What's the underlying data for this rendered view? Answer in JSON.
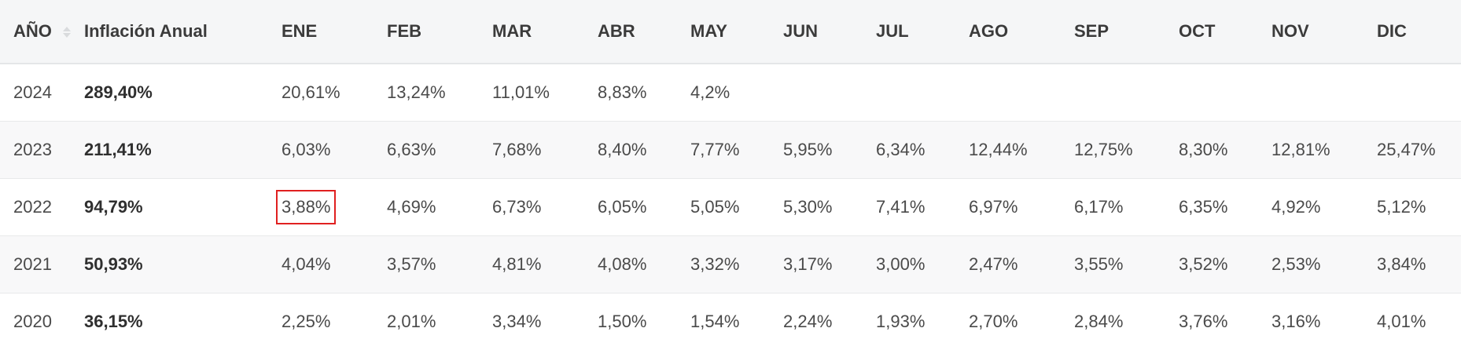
{
  "table": {
    "headers": [
      "AÑO",
      "Inflación Anual",
      "ENE",
      "FEB",
      "MAR",
      "ABR",
      "MAY",
      "JUN",
      "JUL",
      "AGO",
      "SEP",
      "OCT",
      "NOV",
      "DIC"
    ],
    "sort_icon": "sort-icon",
    "highlight_color": "#e02020",
    "highlighted_cell": {
      "year": "2022",
      "month": "ENE"
    },
    "rows": [
      {
        "year": "2024",
        "annual": "289,40%",
        "months": [
          "20,61%",
          "13,24%",
          "11,01%",
          "8,83%",
          "4,2%",
          "",
          "",
          "",
          "",
          "",
          "",
          ""
        ]
      },
      {
        "year": "2023",
        "annual": "211,41%",
        "months": [
          "6,03%",
          "6,63%",
          "7,68%",
          "8,40%",
          "7,77%",
          "5,95%",
          "6,34%",
          "12,44%",
          "12,75%",
          "8,30%",
          "12,81%",
          "25,47%"
        ]
      },
      {
        "year": "2022",
        "annual": "94,79%",
        "months": [
          "3,88%",
          "4,69%",
          "6,73%",
          "6,05%",
          "5,05%",
          "5,30%",
          "7,41%",
          "6,97%",
          "6,17%",
          "6,35%",
          "4,92%",
          "5,12%"
        ]
      },
      {
        "year": "2021",
        "annual": "50,93%",
        "months": [
          "4,04%",
          "3,57%",
          "4,81%",
          "4,08%",
          "3,32%",
          "3,17%",
          "3,00%",
          "2,47%",
          "3,55%",
          "3,52%",
          "2,53%",
          "3,84%"
        ]
      },
      {
        "year": "2020",
        "annual": "36,15%",
        "months": [
          "2,25%",
          "2,01%",
          "3,34%",
          "1,50%",
          "1,54%",
          "2,24%",
          "1,93%",
          "2,70%",
          "2,84%",
          "3,76%",
          "3,16%",
          "4,01%"
        ]
      }
    ]
  }
}
